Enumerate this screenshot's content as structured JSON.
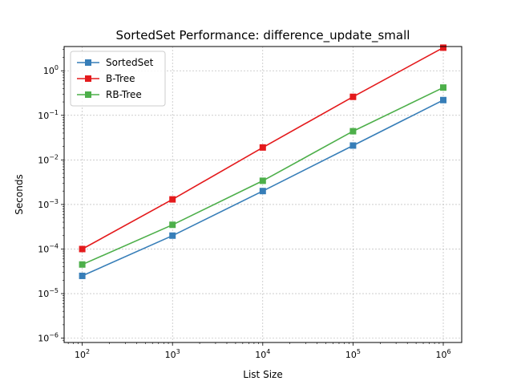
{
  "chart_data": {
    "type": "line",
    "title": "SortedSet Performance: difference_update_small",
    "xlabel": "List Size",
    "ylabel": "Seconds",
    "xscale": "log",
    "yscale": "log",
    "xlim": [
      63,
      1600000
    ],
    "ylim": [
      8e-07,
      3.5
    ],
    "x": [
      100,
      1000,
      10000,
      100000,
      1000000
    ],
    "x_ticks": [
      100,
      1000,
      10000,
      100000,
      1000000
    ],
    "y_ticks": [
      1e-06,
      1e-05,
      0.0001,
      0.001,
      0.01,
      0.1,
      1
    ],
    "tick_labels": {
      "x": [
        {
          "base": "10",
          "exp": "2"
        },
        {
          "base": "10",
          "exp": "3"
        },
        {
          "base": "10",
          "exp": "4"
        },
        {
          "base": "10",
          "exp": "5"
        },
        {
          "base": "10",
          "exp": "6"
        }
      ],
      "y": [
        {
          "base": "10",
          "exp": "−6"
        },
        {
          "base": "10",
          "exp": "−5"
        },
        {
          "base": "10",
          "exp": "−4"
        },
        {
          "base": "10",
          "exp": "−3"
        },
        {
          "base": "10",
          "exp": "−2"
        },
        {
          "base": "10",
          "exp": "−1"
        },
        {
          "base": "10",
          "exp": "0"
        }
      ]
    },
    "grid": true,
    "legend_position": "upper-left",
    "series": [
      {
        "name": "SortedSet",
        "color": "#377eb8",
        "marker": "square",
        "values": [
          2.5e-05,
          0.0002,
          0.002,
          0.021,
          0.22
        ]
      },
      {
        "name": "B-Tree",
        "color": "#e41a1c",
        "marker": "square",
        "values": [
          0.0001,
          0.0013,
          0.019,
          0.26,
          3.3
        ]
      },
      {
        "name": "RB-Tree",
        "color": "#4daf4a",
        "marker": "square",
        "values": [
          4.5e-05,
          0.00035,
          0.0034,
          0.044,
          0.42
        ]
      }
    ]
  }
}
